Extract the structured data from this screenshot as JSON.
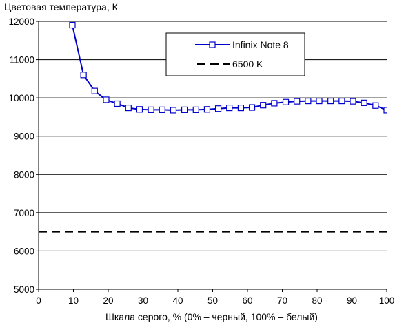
{
  "chart_data": {
    "type": "line",
    "title": "",
    "ylabel": "Цветовая температура, К",
    "xlabel": "Шкала серого, % (0% – черный, 100% – белый)",
    "xlim": [
      0,
      100
    ],
    "ylim": [
      5000,
      12000
    ],
    "xticks": [
      0,
      10,
      20,
      30,
      40,
      50,
      60,
      70,
      80,
      90,
      100
    ],
    "yticks": [
      5000,
      6000,
      7000,
      8000,
      9000,
      10000,
      11000,
      12000
    ],
    "grid": "horizontal",
    "legend_position": "top-right",
    "series": [
      {
        "name": "Infinix Note 8",
        "style": "line-with-square-markers",
        "color": "#0000cc",
        "x": [
          9.7,
          12.9,
          16.1,
          19.4,
          22.6,
          25.8,
          29.0,
          32.3,
          35.5,
          38.7,
          41.9,
          45.2,
          48.4,
          51.6,
          54.8,
          58.1,
          61.3,
          64.5,
          67.7,
          71.0,
          74.2,
          77.4,
          80.6,
          83.9,
          87.1,
          90.3,
          93.5,
          96.8,
          100
        ],
        "y": [
          11900,
          10600,
          10180,
          9950,
          9850,
          9740,
          9700,
          9690,
          9690,
          9680,
          9690,
          9690,
          9700,
          9720,
          9740,
          9740,
          9750,
          9810,
          9860,
          9890,
          9910,
          9920,
          9920,
          9920,
          9920,
          9910,
          9870,
          9800,
          9680
        ]
      },
      {
        "name": "6500 K",
        "style": "dashed",
        "color": "#000000",
        "x": [
          0,
          100
        ],
        "y": [
          6500,
          6500
        ]
      }
    ]
  }
}
